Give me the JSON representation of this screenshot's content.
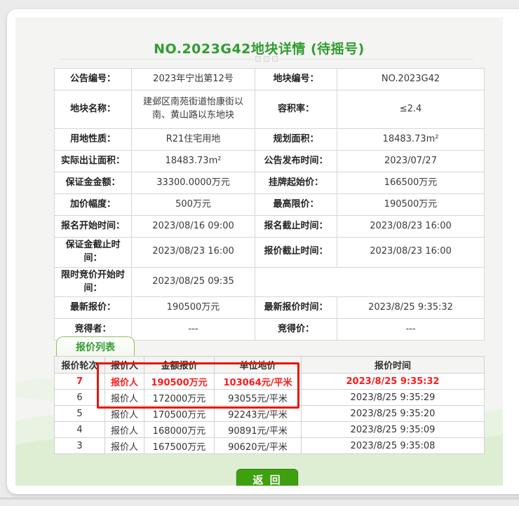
{
  "page": {
    "title": "NO.2023G42地块详情 (待摇号)"
  },
  "colors": {
    "green": "#2f9d2f",
    "red": "#ff1a1a",
    "annotation-red": "#e81500",
    "button-green": "#3ea00e",
    "button-border": "#2f8708"
  },
  "detail_table": {
    "rows": [
      {
        "cells": [
          {
            "text": "公告编号：",
            "kind": "label"
          },
          {
            "text": "2023年宁出第12号",
            "kind": "value"
          },
          {
            "text": "地块编号：",
            "kind": "label"
          },
          {
            "text": "NO.2023G42",
            "kind": "value"
          }
        ]
      },
      {
        "tall": true,
        "cells": [
          {
            "text": "地块名称：",
            "kind": "label"
          },
          {
            "text": "建邺区南苑街道怡康街以南、黄山路以东地块",
            "kind": "value"
          },
          {
            "text": "容积率：",
            "kind": "label"
          },
          {
            "text": "≤2.4",
            "kind": "value"
          }
        ]
      },
      {
        "cells": [
          {
            "text": "用地性质：",
            "kind": "label"
          },
          {
            "text": "R21住宅用地",
            "kind": "value"
          },
          {
            "text": "规划面积：",
            "kind": "label"
          },
          {
            "text": "18483.73m²",
            "kind": "value"
          }
        ]
      },
      {
        "cells": [
          {
            "text": "实际出让面积：",
            "kind": "label"
          },
          {
            "text": "18483.73m²",
            "kind": "value"
          },
          {
            "text": "公告发布时间：",
            "kind": "label"
          },
          {
            "text": "2023/07/27",
            "kind": "value"
          }
        ]
      },
      {
        "cells": [
          {
            "text": "保证金金额：",
            "kind": "label"
          },
          {
            "text": "33300.0000万元",
            "kind": "value"
          },
          {
            "text": "挂牌起始价：",
            "kind": "label"
          },
          {
            "text": "166500万元",
            "kind": "value",
            "color": "green"
          }
        ]
      },
      {
        "cells": [
          {
            "text": "加价幅度：",
            "kind": "label"
          },
          {
            "text": "500万元",
            "kind": "value"
          },
          {
            "text": "最高限价：",
            "kind": "label"
          },
          {
            "text": "190500万元",
            "kind": "value"
          }
        ]
      },
      {
        "cells": [
          {
            "text": "报名开始时间：",
            "kind": "label"
          },
          {
            "text": "2023/08/16 09:00",
            "kind": "value"
          },
          {
            "text": "报名截止时间：",
            "kind": "label"
          },
          {
            "text": "2023/08/23 16:00",
            "kind": "value"
          }
        ]
      },
      {
        "cells": [
          {
            "text": "保证金截止时间：",
            "kind": "label"
          },
          {
            "text": "2023/08/23 16:00",
            "kind": "value"
          },
          {
            "text": "报价截止时间：",
            "kind": "label"
          },
          {
            "text": "2023/08/23 16:00",
            "kind": "value"
          }
        ]
      },
      {
        "cells": [
          {
            "text": "限时竞价开始时间：",
            "kind": "label"
          },
          {
            "text": "2023/08/25 09:35",
            "kind": "value",
            "color": "red"
          },
          {
            "text": "",
            "kind": "value",
            "span": 2
          }
        ]
      },
      {
        "cells": [
          {
            "text": "最新报价：",
            "kind": "label"
          },
          {
            "text": "190500万元",
            "kind": "value"
          },
          {
            "text": "最新报价时间：",
            "kind": "label"
          },
          {
            "text": "2023/8/25 9:35:32",
            "kind": "value"
          }
        ]
      },
      {
        "cells": [
          {
            "text": "竞得者：",
            "kind": "label"
          },
          {
            "text": "---",
            "kind": "value"
          },
          {
            "text": "竞得价：",
            "kind": "label"
          },
          {
            "text": "---",
            "kind": "value",
            "color": "red"
          }
        ]
      }
    ]
  },
  "bid_section": {
    "tab_label": "报价列表",
    "table": {
      "headers": [
        "报价轮次",
        "报价人",
        "金额报价",
        "单位地价",
        "报价时间"
      ],
      "rows": [
        {
          "highlight": true,
          "cells": [
            "7",
            "报价人",
            "190500万元",
            "103064元/平米",
            "2023/8/25 9:35:32"
          ]
        },
        {
          "cells": [
            "6",
            "报价人",
            "172000万元",
            "93055元/平米",
            "2023/8/25 9:35:29"
          ]
        },
        {
          "cells": [
            "5",
            "报价人",
            "170500万元",
            "92243元/平米",
            "2023/8/25 9:35:20"
          ]
        },
        {
          "cells": [
            "4",
            "报价人",
            "168000万元",
            "90891元/平米",
            "2023/8/25 9:35:09"
          ]
        },
        {
          "cells": [
            "3",
            "报价人",
            "167500万元",
            "90620元/平米",
            "2023/8/25 9:35:08"
          ]
        }
      ]
    }
  },
  "back_button": {
    "label": "返 回"
  }
}
